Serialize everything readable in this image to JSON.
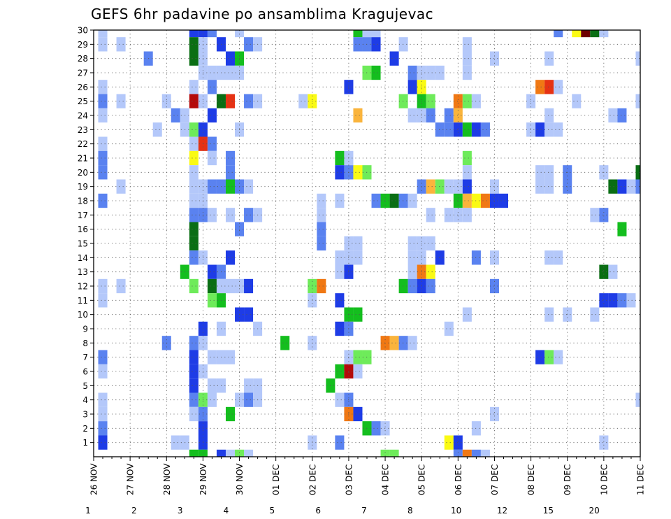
{
  "chart_data": {
    "type": "heatmap",
    "title": "GEFS 6hr padavine po ansamblima Kragujevac",
    "xlabel": "",
    "ylabel": "",
    "x_ticks": [
      "26 NOV",
      "27 NOV",
      "28 NOV",
      "29 NOV",
      "30 NOV",
      "01 DEC",
      "02 DEC",
      "03 DEC",
      "04 DEC",
      "05 DEC",
      "06 DEC",
      "07 DEC",
      "08 DEC",
      "09 DEC",
      "10 DEC",
      "11 DEC"
    ],
    "x_range_days": [
      0,
      15
    ],
    "y_ticks": [
      1,
      2,
      3,
      4,
      5,
      6,
      7,
      8,
      9,
      10,
      11,
      12,
      13,
      14,
      15,
      16,
      17,
      18,
      19,
      20,
      21,
      22,
      23,
      24,
      25,
      26,
      27,
      28,
      29,
      30
    ],
    "y_range": [
      0,
      30
    ],
    "grid": true,
    "colorbar": {
      "levels": [
        "1",
        "2",
        "3",
        "4",
        "5",
        "6",
        "7",
        "8",
        "10",
        "12",
        "15",
        "20"
      ],
      "colors": [
        "#b4c8fa",
        "#5a82f0",
        "#1e3ce6",
        "#6eeb5a",
        "#14be1e",
        "#0a6e14",
        "#fafa14",
        "#fab43c",
        "#f07814",
        "#e63214",
        "#b40a0a",
        "#6e0000"
      ]
    },
    "cells": [
      [
        0.25,
        30,
        1
      ],
      [
        0.25,
        29,
        1
      ],
      [
        0.25,
        26,
        1
      ],
      [
        0.25,
        25,
        2
      ],
      [
        0.25,
        24,
        1
      ],
      [
        0.25,
        22,
        1
      ],
      [
        0.25,
        21,
        2
      ],
      [
        0.25,
        20,
        2
      ],
      [
        0.25,
        18,
        2
      ],
      [
        0.25,
        12,
        1
      ],
      [
        0.25,
        11,
        1
      ],
      [
        0.25,
        7,
        2
      ],
      [
        0.25,
        6,
        1
      ],
      [
        0.25,
        4,
        1
      ],
      [
        0.25,
        3,
        1
      ],
      [
        0.25,
        2,
        2
      ],
      [
        0.25,
        1,
        3
      ],
      [
        0.75,
        29,
        1
      ],
      [
        0.75,
        25,
        1
      ],
      [
        0.75,
        19,
        1
      ],
      [
        0.75,
        12,
        1
      ],
      [
        1.5,
        28,
        2
      ],
      [
        1.75,
        23,
        1
      ],
      [
        2.0,
        25,
        1
      ],
      [
        2.0,
        8,
        2
      ],
      [
        2.25,
        24,
        2
      ],
      [
        2.25,
        1,
        1
      ],
      [
        2.5,
        23,
        1
      ],
      [
        2.5,
        24,
        1
      ],
      [
        2.5,
        1,
        1
      ],
      [
        2.75,
        30,
        3
      ],
      [
        2.75,
        29,
        6
      ],
      [
        2.75,
        28,
        6
      ],
      [
        2.75,
        26,
        1
      ],
      [
        2.75,
        25,
        11
      ],
      [
        2.75,
        23,
        4
      ],
      [
        2.75,
        22,
        1
      ],
      [
        2.75,
        21,
        7
      ],
      [
        2.75,
        20,
        1
      ],
      [
        2.75,
        19,
        1
      ],
      [
        2.75,
        18,
        1
      ],
      [
        2.75,
        17,
        2
      ],
      [
        2.75,
        16,
        6
      ],
      [
        2.75,
        15,
        6
      ],
      [
        2.75,
        14,
        2
      ],
      [
        2.75,
        12,
        4
      ],
      [
        2.75,
        8,
        2
      ],
      [
        2.75,
        7,
        3
      ],
      [
        2.75,
        6,
        3
      ],
      [
        2.75,
        5,
        3
      ],
      [
        2.75,
        4,
        2
      ],
      [
        2.75,
        3,
        1
      ],
      [
        2.75,
        0,
        5
      ],
      [
        2.5,
        13,
        5
      ],
      [
        3.0,
        30,
        3
      ],
      [
        3.0,
        29,
        1
      ],
      [
        3.0,
        28,
        1
      ],
      [
        3.0,
        27,
        1
      ],
      [
        3.0,
        25,
        1
      ],
      [
        3.0,
        23,
        3
      ],
      [
        3.0,
        22,
        10
      ],
      [
        3.0,
        19,
        1
      ],
      [
        3.0,
        18,
        1
      ],
      [
        3.0,
        17,
        2
      ],
      [
        3.0,
        14,
        1
      ],
      [
        3.0,
        9,
        3
      ],
      [
        3.0,
        8,
        1
      ],
      [
        3.0,
        6,
        1
      ],
      [
        3.0,
        4,
        4
      ],
      [
        3.0,
        3,
        2
      ],
      [
        3.0,
        2,
        3
      ],
      [
        3.0,
        1,
        3
      ],
      [
        3.0,
        0,
        5
      ],
      [
        3.25,
        30,
        2
      ],
      [
        3.25,
        27,
        1
      ],
      [
        3.25,
        26,
        2
      ],
      [
        3.25,
        22,
        2
      ],
      [
        3.25,
        21,
        1
      ],
      [
        3.25,
        24,
        3
      ],
      [
        3.25,
        17,
        1
      ],
      [
        3.25,
        13,
        3
      ],
      [
        3.25,
        12,
        6
      ],
      [
        3.25,
        11,
        4
      ],
      [
        3.25,
        19,
        2
      ],
      [
        3.25,
        7,
        1
      ],
      [
        3.25,
        5,
        1
      ],
      [
        3.25,
        4,
        1
      ],
      [
        3.5,
        29,
        3
      ],
      [
        3.5,
        27,
        1
      ],
      [
        3.5,
        25,
        6
      ],
      [
        3.5,
        19,
        2
      ],
      [
        3.5,
        13,
        2
      ],
      [
        3.5,
        12,
        1
      ],
      [
        3.5,
        11,
        5
      ],
      [
        3.5,
        7,
        1
      ],
      [
        3.5,
        5,
        1
      ],
      [
        3.5,
        0,
        3
      ],
      [
        3.5,
        9,
        1
      ],
      [
        3.75,
        28,
        3
      ],
      [
        3.75,
        27,
        1
      ],
      [
        3.75,
        25,
        10
      ],
      [
        3.75,
        21,
        2
      ],
      [
        3.75,
        20,
        2
      ],
      [
        3.75,
        19,
        5
      ],
      [
        3.75,
        17,
        1
      ],
      [
        3.75,
        14,
        3
      ],
      [
        3.75,
        12,
        1
      ],
      [
        3.75,
        7,
        1
      ],
      [
        3.75,
        3,
        5
      ],
      [
        3.75,
        0,
        1
      ],
      [
        4.0,
        30,
        1
      ],
      [
        4.0,
        28,
        5
      ],
      [
        4.0,
        27,
        1
      ],
      [
        4.0,
        23,
        1
      ],
      [
        4.0,
        19,
        2
      ],
      [
        4.0,
        16,
        2
      ],
      [
        4.0,
        12,
        1
      ],
      [
        4.0,
        10,
        3
      ],
      [
        4.0,
        4,
        1
      ],
      [
        4.0,
        0,
        4
      ],
      [
        4.25,
        29,
        2
      ],
      [
        4.25,
        25,
        2
      ],
      [
        4.25,
        19,
        1
      ],
      [
        4.25,
        17,
        2
      ],
      [
        4.25,
        12,
        3
      ],
      [
        4.25,
        10,
        3
      ],
      [
        4.25,
        5,
        1
      ],
      [
        4.25,
        4,
        2
      ],
      [
        4.25,
        0,
        1
      ],
      [
        4.5,
        29,
        1
      ],
      [
        4.5,
        25,
        1
      ],
      [
        4.5,
        17,
        1
      ],
      [
        4.5,
        9,
        1
      ],
      [
        4.5,
        5,
        1
      ],
      [
        4.5,
        4,
        1
      ],
      [
        5.25,
        8,
        5
      ],
      [
        5.75,
        25,
        1
      ],
      [
        6.0,
        25,
        7
      ],
      [
        6.0,
        12,
        4
      ],
      [
        6.0,
        11,
        1
      ],
      [
        6.0,
        8,
        1
      ],
      [
        6.0,
        1,
        1
      ],
      [
        6.25,
        18,
        1
      ],
      [
        6.25,
        17,
        1
      ],
      [
        6.25,
        16,
        2
      ],
      [
        6.25,
        15,
        2
      ],
      [
        6.25,
        12,
        9
      ],
      [
        6.5,
        5,
        5
      ],
      [
        6.75,
        21,
        5
      ],
      [
        6.75,
        20,
        3
      ],
      [
        6.75,
        18,
        1
      ],
      [
        6.75,
        14,
        1
      ],
      [
        6.75,
        13,
        1
      ],
      [
        6.75,
        11,
        3
      ],
      [
        6.75,
        9,
        3
      ],
      [
        6.75,
        6,
        5
      ],
      [
        6.75,
        4,
        1
      ],
      [
        6.75,
        1,
        2
      ],
      [
        7.0,
        26,
        3
      ],
      [
        7.0,
        21,
        1
      ],
      [
        7.0,
        20,
        2
      ],
      [
        7.0,
        15,
        1
      ],
      [
        7.0,
        14,
        1
      ],
      [
        7.0,
        13,
        3
      ],
      [
        7.0,
        10,
        5
      ],
      [
        7.0,
        9,
        2
      ],
      [
        7.0,
        7,
        1
      ],
      [
        7.0,
        6,
        11
      ],
      [
        7.0,
        4,
        2
      ],
      [
        7.0,
        3,
        9
      ],
      [
        7.25,
        30,
        5
      ],
      [
        7.25,
        29,
        2
      ],
      [
        7.25,
        24,
        8
      ],
      [
        7.25,
        20,
        7
      ],
      [
        7.25,
        15,
        1
      ],
      [
        7.25,
        14,
        1
      ],
      [
        7.25,
        10,
        5
      ],
      [
        7.25,
        7,
        4
      ],
      [
        7.25,
        6,
        1
      ],
      [
        7.25,
        3,
        3
      ],
      [
        7.5,
        30,
        1
      ],
      [
        7.5,
        29,
        2
      ],
      [
        7.5,
        27,
        4
      ],
      [
        7.5,
        20,
        4
      ],
      [
        7.5,
        7,
        4
      ],
      [
        7.5,
        2,
        5
      ],
      [
        7.75,
        30,
        1
      ],
      [
        7.75,
        29,
        3
      ],
      [
        7.75,
        27,
        5
      ],
      [
        7.75,
        2,
        2
      ],
      [
        8.0,
        2,
        1
      ],
      [
        8.0,
        0,
        4
      ],
      [
        8.25,
        0,
        4
      ],
      [
        7.75,
        18,
        2
      ],
      [
        8.0,
        18,
        5
      ],
      [
        8.25,
        28,
        3
      ],
      [
        8.25,
        18,
        6
      ],
      [
        8.0,
        8,
        9
      ],
      [
        8.25,
        8,
        8
      ],
      [
        8.5,
        29,
        1
      ],
      [
        8.5,
        25,
        4
      ],
      [
        8.5,
        18,
        2
      ],
      [
        8.5,
        8,
        2
      ],
      [
        8.5,
        12,
        5
      ],
      [
        8.75,
        27,
        2
      ],
      [
        8.75,
        26,
        3
      ],
      [
        8.75,
        24,
        1
      ],
      [
        8.75,
        18,
        1
      ],
      [
        8.75,
        15,
        1
      ],
      [
        8.75,
        14,
        1
      ],
      [
        8.75,
        13,
        1
      ],
      [
        8.75,
        12,
        2
      ],
      [
        8.75,
        8,
        1
      ],
      [
        9.0,
        27,
        1
      ],
      [
        9.0,
        26,
        7
      ],
      [
        9.0,
        25,
        5
      ],
      [
        9.0,
        24,
        1
      ],
      [
        9.0,
        19,
        2
      ],
      [
        9.0,
        15,
        1
      ],
      [
        9.0,
        14,
        1
      ],
      [
        9.0,
        13,
        9
      ],
      [
        9.0,
        12,
        3
      ],
      [
        9.25,
        27,
        1
      ],
      [
        9.25,
        25,
        4
      ],
      [
        9.25,
        24,
        2
      ],
      [
        9.25,
        19,
        8
      ],
      [
        9.25,
        17,
        1
      ],
      [
        9.25,
        15,
        1
      ],
      [
        9.25,
        13,
        7
      ],
      [
        9.25,
        12,
        2
      ],
      [
        9.5,
        27,
        1
      ],
      [
        9.5,
        23,
        2
      ],
      [
        9.5,
        19,
        4
      ],
      [
        9.5,
        14,
        3
      ],
      [
        9.75,
        24,
        2
      ],
      [
        9.75,
        23,
        2
      ],
      [
        9.75,
        19,
        1
      ],
      [
        9.75,
        17,
        1
      ],
      [
        9.75,
        9,
        1
      ],
      [
        9.75,
        1,
        7
      ],
      [
        10.0,
        25,
        9
      ],
      [
        10.0,
        24,
        8
      ],
      [
        10.0,
        23,
        3
      ],
      [
        10.0,
        19,
        1
      ],
      [
        10.0,
        18,
        5
      ],
      [
        10.0,
        17,
        1
      ],
      [
        10.0,
        1,
        3
      ],
      [
        10.0,
        0,
        2
      ],
      [
        10.25,
        29,
        1
      ],
      [
        10.25,
        28,
        1
      ],
      [
        10.25,
        27,
        1
      ],
      [
        10.25,
        25,
        4
      ],
      [
        10.25,
        23,
        5
      ],
      [
        10.25,
        21,
        4
      ],
      [
        10.25,
        20,
        1
      ],
      [
        10.25,
        19,
        3
      ],
      [
        10.25,
        18,
        8
      ],
      [
        10.25,
        17,
        1
      ],
      [
        10.25,
        10,
        1
      ],
      [
        10.25,
        0,
        9
      ],
      [
        10.5,
        25,
        1
      ],
      [
        10.5,
        23,
        3
      ],
      [
        10.5,
        18,
        7
      ],
      [
        10.5,
        14,
        2
      ],
      [
        10.5,
        2,
        1
      ],
      [
        10.5,
        0,
        2
      ],
      [
        10.75,
        23,
        2
      ],
      [
        10.75,
        18,
        9
      ],
      [
        10.75,
        0,
        1
      ],
      [
        11.0,
        28,
        1
      ],
      [
        11.0,
        19,
        1
      ],
      [
        11.0,
        18,
        3
      ],
      [
        11.0,
        14,
        1
      ],
      [
        11.0,
        12,
        2
      ],
      [
        11.0,
        3,
        1
      ],
      [
        11.25,
        18,
        3
      ],
      [
        12.0,
        23,
        1
      ],
      [
        12.0,
        25,
        1
      ],
      [
        12.25,
        26,
        9
      ],
      [
        12.25,
        23,
        3
      ],
      [
        12.25,
        7,
        3
      ],
      [
        12.25,
        20,
        1
      ],
      [
        12.25,
        19,
        1
      ],
      [
        12.5,
        28,
        1
      ],
      [
        12.5,
        26,
        10
      ],
      [
        12.5,
        24,
        1
      ],
      [
        12.5,
        23,
        1
      ],
      [
        12.5,
        20,
        1
      ],
      [
        12.5,
        19,
        1
      ],
      [
        12.5,
        14,
        1
      ],
      [
        12.5,
        10,
        1
      ],
      [
        12.5,
        7,
        4
      ],
      [
        12.75,
        30,
        2
      ],
      [
        12.75,
        26,
        1
      ],
      [
        12.75,
        23,
        1
      ],
      [
        12.75,
        14,
        1
      ],
      [
        12.75,
        7,
        1
      ],
      [
        13.0,
        19,
        2
      ],
      [
        13.0,
        20,
        2
      ],
      [
        13.0,
        10,
        1
      ],
      [
        13.25,
        30,
        7
      ],
      [
        13.5,
        30,
        12
      ],
      [
        13.75,
        30,
        6
      ],
      [
        13.25,
        25,
        1
      ],
      [
        13.75,
        17,
        1
      ],
      [
        13.75,
        10,
        1
      ],
      [
        14.0,
        30,
        1
      ],
      [
        14.0,
        20,
        1
      ],
      [
        14.0,
        17,
        2
      ],
      [
        14.0,
        13,
        6
      ],
      [
        14.0,
        11,
        3
      ],
      [
        14.0,
        1,
        1
      ],
      [
        14.25,
        19,
        6
      ],
      [
        14.25,
        13,
        1
      ],
      [
        14.25,
        11,
        3
      ],
      [
        14.25,
        24,
        1
      ],
      [
        14.5,
        19,
        3
      ],
      [
        14.5,
        16,
        5
      ],
      [
        14.5,
        11,
        2
      ],
      [
        14.5,
        24,
        2
      ],
      [
        14.75,
        19,
        1
      ],
      [
        14.75,
        11,
        1
      ],
      [
        15.0,
        28,
        1
      ],
      [
        15.0,
        25,
        1
      ],
      [
        15.0,
        20,
        6
      ],
      [
        15.0,
        19,
        2
      ],
      [
        15.0,
        4,
        1
      ]
    ]
  }
}
